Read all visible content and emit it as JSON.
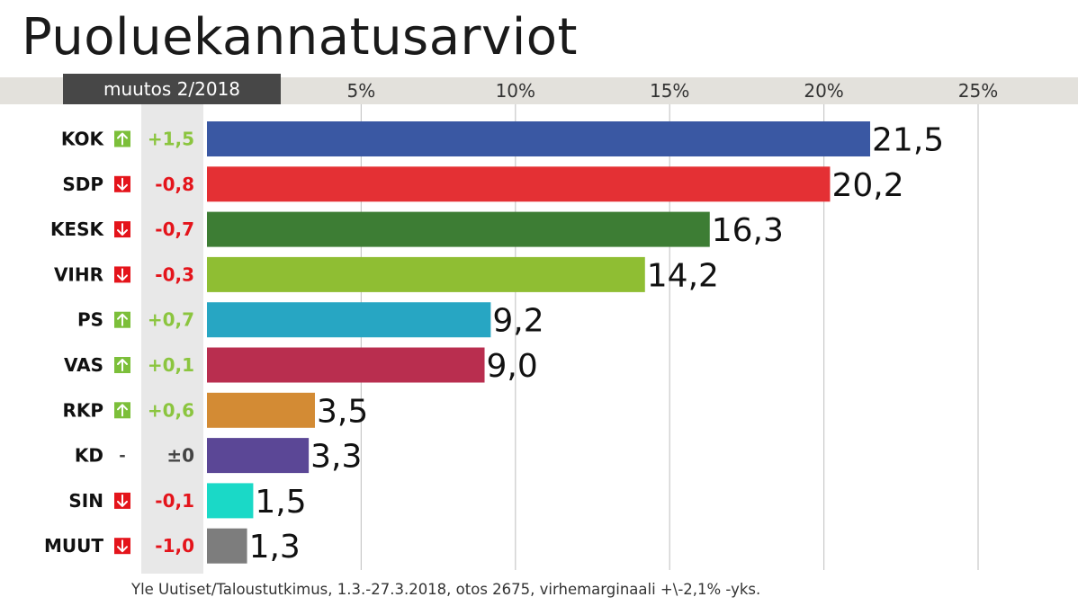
{
  "title": "Puoluekannatusarviot",
  "change_header": "muutos 2/2018",
  "source": "Yle Uutiset/Taloustutkimus, 1.3.-27.3.2018, otos 2675, virhemarginaali +\\-2,1% -yks.",
  "colors": {
    "up": "#8bc53f",
    "down": "#e4141b",
    "neutral": "#444444",
    "up_icon": "#7cbf3a",
    "down_icon": "#e4141b"
  },
  "chart_data": {
    "type": "bar",
    "orientation": "horizontal",
    "xlim": [
      0,
      25
    ],
    "x_ticks": [
      "5%",
      "10%",
      "15%",
      "20%",
      "25%"
    ],
    "grid": true,
    "categories": [
      "KOK",
      "SDP",
      "KESK",
      "VIHR",
      "PS",
      "VAS",
      "RKP",
      "KD",
      "SIN",
      "MUUT"
    ],
    "values": [
      21.5,
      20.2,
      16.3,
      14.2,
      9.2,
      9.0,
      3.5,
      3.3,
      1.5,
      1.3
    ],
    "value_labels": [
      "21,5",
      "20,2",
      "16,3",
      "14,2",
      "9,2",
      "9,0",
      "3,5",
      "3,3",
      "1,5",
      "1,3"
    ],
    "changes": [
      "+1,5",
      "-0,8",
      "-0,7",
      "-0,3",
      "+0,7",
      "+0,1",
      "+0,6",
      "±0",
      "-0,1",
      "-1,0"
    ],
    "directions": [
      "up",
      "down",
      "down",
      "down",
      "up",
      "up",
      "up",
      "none",
      "down",
      "down"
    ],
    "neutral_marker": "-",
    "bar_colors": [
      "#3a58a3",
      "#e43034",
      "#3d7d34",
      "#8fbe33",
      "#27a6c3",
      "#b92e4f",
      "#d38b34",
      "#5b4796",
      "#1ad9c7",
      "#7d7d7d"
    ]
  }
}
